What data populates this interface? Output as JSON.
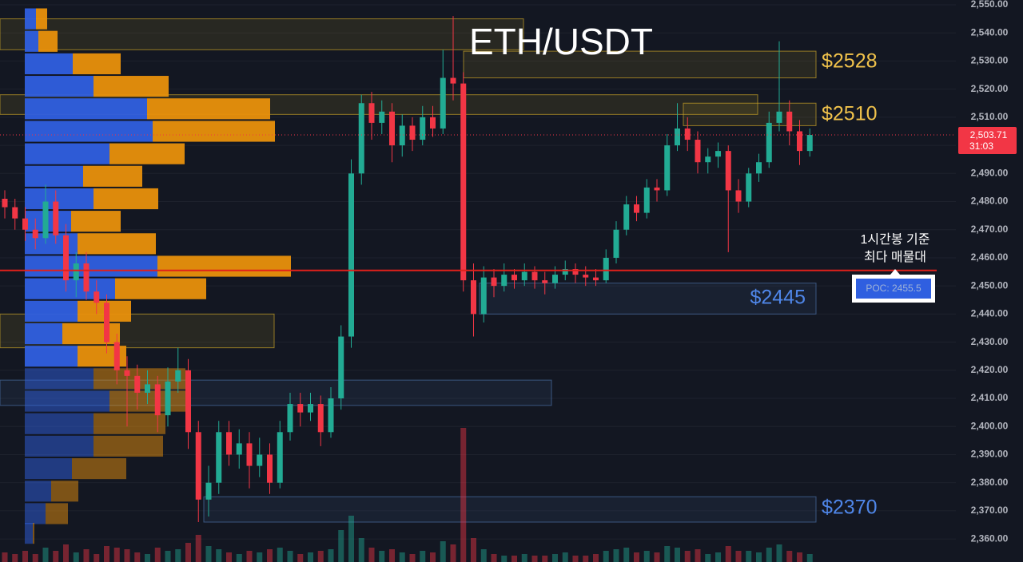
{
  "chart_data": {
    "type": "candlestick",
    "title": "ETH/USDT",
    "ylim": [
      2351.8,
      2551.7
    ],
    "yticks": [
      {
        "value": 2550,
        "label": "2,550.00"
      },
      {
        "value": 2540,
        "label": "2,540.00"
      },
      {
        "value": 2530,
        "label": "2,530.00"
      },
      {
        "value": 2520,
        "label": "2,520.00"
      },
      {
        "value": 2510,
        "label": "2,510.00"
      },
      {
        "value": 2500,
        "label": "2,500.00"
      },
      {
        "value": 2490,
        "label": "2,490.00"
      },
      {
        "value": 2480,
        "label": "2,480.00"
      },
      {
        "value": 2470,
        "label": "2,470.00"
      },
      {
        "value": 2460,
        "label": "2,460.00"
      },
      {
        "value": 2450,
        "label": "2,450.00"
      },
      {
        "value": 2440,
        "label": "2,440.00"
      },
      {
        "value": 2430,
        "label": "2,430.00"
      },
      {
        "value": 2420,
        "label": "2,420.00"
      },
      {
        "value": 2410,
        "label": "2,410.00"
      },
      {
        "value": 2400,
        "label": "2,400.00"
      },
      {
        "value": 2390,
        "label": "2,390.00"
      },
      {
        "value": 2380,
        "label": "2,380.00"
      },
      {
        "value": 2370,
        "label": "2,370.00"
      },
      {
        "value": 2360,
        "label": "2,360.00"
      }
    ],
    "grid": true,
    "up_color": "#22ab94",
    "down_color": "#f23645",
    "candles": [
      [
        2481,
        2484,
        2474,
        2478
      ],
      [
        2478,
        2481,
        2470,
        2474
      ],
      [
        2474,
        2478,
        2466,
        2470
      ],
      [
        2470,
        2474,
        2463,
        2467
      ],
      [
        2467,
        2486,
        2465,
        2480
      ],
      [
        2480,
        2484,
        2465,
        2468
      ],
      [
        2468,
        2472,
        2448,
        2452
      ],
      [
        2452,
        2462,
        2446,
        2458
      ],
      [
        2458,
        2462,
        2445,
        2448
      ],
      [
        2448,
        2452,
        2440,
        2444
      ],
      [
        2444,
        2447,
        2426,
        2430
      ],
      [
        2430,
        2433,
        2415,
        2420
      ],
      [
        2420,
        2425,
        2400,
        2418
      ],
      [
        2418,
        2422,
        2406,
        2412
      ],
      [
        2412,
        2420,
        2408,
        2415
      ],
      [
        2415,
        2418,
        2398,
        2404
      ],
      [
        2404,
        2421,
        2400,
        2416
      ],
      [
        2416,
        2428,
        2412,
        2420
      ],
      [
        2420,
        2424,
        2392,
        2398
      ],
      [
        2398,
        2402,
        2366,
        2374
      ],
      [
        2374,
        2386,
        2368,
        2380
      ],
      [
        2380,
        2402,
        2376,
        2398
      ],
      [
        2398,
        2402,
        2386,
        2390
      ],
      [
        2390,
        2399,
        2385,
        2394
      ],
      [
        2394,
        2398,
        2378,
        2386
      ],
      [
        2386,
        2396,
        2382,
        2390
      ],
      [
        2390,
        2394,
        2376,
        2380
      ],
      [
        2380,
        2402,
        2378,
        2398
      ],
      [
        2398,
        2412,
        2395,
        2408
      ],
      [
        2408,
        2412,
        2400,
        2405
      ],
      [
        2405,
        2412,
        2402,
        2408
      ],
      [
        2408,
        2411,
        2393,
        2398
      ],
      [
        2398,
        2414,
        2396,
        2410
      ],
      [
        2410,
        2436,
        2406,
        2432
      ],
      [
        2432,
        2495,
        2428,
        2490
      ],
      [
        2490,
        2518,
        2486,
        2515
      ],
      [
        2515,
        2519,
        2502,
        2508
      ],
      [
        2508,
        2516,
        2504,
        2512
      ],
      [
        2512,
        2515,
        2494,
        2500
      ],
      [
        2500,
        2511,
        2496,
        2507
      ],
      [
        2507,
        2510,
        2498,
        2502
      ],
      [
        2502,
        2514,
        2500,
        2510
      ],
      [
        2510,
        2514,
        2503,
        2506
      ],
      [
        2506,
        2534,
        2504,
        2524
      ],
      [
        2524,
        2546,
        2516,
        2522
      ],
      [
        2522,
        2526,
        2448,
        2452
      ],
      [
        2452,
        2458,
        2432,
        2440
      ],
      [
        2440,
        2457,
        2437,
        2453
      ],
      [
        2453,
        2456,
        2446,
        2450
      ],
      [
        2450,
        2458,
        2448,
        2454
      ],
      [
        2454,
        2456,
        2449,
        2452
      ],
      [
        2452,
        2458,
        2450,
        2455
      ],
      [
        2455,
        2457,
        2449,
        2452
      ],
      [
        2452,
        2455,
        2447,
        2451
      ],
      [
        2451,
        2457,
        2449,
        2454
      ],
      [
        2454,
        2459,
        2452,
        2456
      ],
      [
        2456,
        2458,
        2451,
        2454
      ],
      [
        2454,
        2457,
        2450,
        2453
      ],
      [
        2453,
        2456,
        2450,
        2452
      ],
      [
        2452,
        2463,
        2451,
        2460
      ],
      [
        2460,
        2473,
        2458,
        2470
      ],
      [
        2470,
        2482,
        2468,
        2479
      ],
      [
        2479,
        2482,
        2473,
        2476
      ],
      [
        2476,
        2488,
        2474,
        2485
      ],
      [
        2485,
        2488,
        2480,
        2484
      ],
      [
        2484,
        2504,
        2482,
        2500
      ],
      [
        2500,
        2515,
        2498,
        2506
      ],
      [
        2506,
        2510,
        2498,
        2502
      ],
      [
        2502,
        2505,
        2490,
        2494
      ],
      [
        2494,
        2499,
        2490,
        2496
      ],
      [
        2496,
        2501,
        2492,
        2498
      ],
      [
        2498,
        2500,
        2462,
        2484
      ],
      [
        2484,
        2488,
        2476,
        2480
      ],
      [
        2480,
        2492,
        2478,
        2490
      ],
      [
        2490,
        2497,
        2487,
        2494
      ],
      [
        2494,
        2512,
        2492,
        2508
      ],
      [
        2508,
        2537,
        2505,
        2512
      ],
      [
        2512,
        2516,
        2500,
        2505
      ],
      [
        2505,
        2509,
        2493,
        2498
      ],
      [
        2498,
        2506,
        2496,
        2503.71
      ]
    ],
    "volume": [
      12,
      10,
      14,
      10,
      18,
      14,
      22,
      12,
      16,
      10,
      20,
      18,
      16,
      12,
      10,
      18,
      14,
      16,
      24,
      34,
      20,
      16,
      12,
      10,
      14,
      12,
      16,
      18,
      14,
      10,
      12,
      14,
      16,
      40,
      58,
      30,
      18,
      14,
      16,
      12,
      10,
      14,
      12,
      26,
      22,
      168,
      30,
      16,
      10,
      8,
      8,
      10,
      8,
      8,
      10,
      12,
      8,
      8,
      10,
      14,
      16,
      18,
      12,
      14,
      12,
      20,
      18,
      14,
      16,
      10,
      12,
      20,
      14,
      14,
      12,
      18,
      22,
      14,
      12,
      10
    ],
    "profile": {
      "prices": [
        2545,
        2537,
        2529,
        2521,
        2513,
        2505,
        2497,
        2489,
        2481,
        2473,
        2465,
        2457,
        2449,
        2441,
        2433,
        2425,
        2417,
        2409,
        2401,
        2393,
        2385,
        2377,
        2369,
        2362
      ],
      "buy": [
        14,
        17,
        60,
        86,
        153,
        160,
        106,
        73,
        86,
        58,
        66,
        166,
        113,
        66,
        47,
        66,
        86,
        106,
        86,
        86,
        59,
        33,
        26,
        10
      ],
      "sell": [
        14,
        24,
        60,
        94,
        154,
        153,
        94,
        74,
        81,
        62,
        98,
        167,
        114,
        67,
        72,
        61,
        115,
        98,
        90,
        87,
        68,
        34,
        28,
        2
      ],
      "buy_color": "#2f5fe0",
      "sell_color": "#e8900c"
    },
    "zones": [
      {
        "low": 2534,
        "high": 2545,
        "color": "#c9a227"
      },
      {
        "low": 2524,
        "high": 2533.5,
        "color": "#c9a227"
      },
      {
        "low": 2511,
        "high": 2518,
        "color": "#c9a227"
      },
      {
        "low": 2507,
        "high": 2515,
        "color": "#c9a227"
      },
      {
        "low": 2440,
        "high": 2451,
        "color": "#4a6fa5"
      },
      {
        "low": 2428,
        "high": 2440,
        "color": "#c9a227"
      },
      {
        "low": 2407.5,
        "high": 2416.5,
        "color": "#4a6fa5"
      },
      {
        "low": 2366,
        "high": 2375,
        "color": "#4a6fa5"
      }
    ],
    "annotations": [
      {
        "text": "$2528",
        "color": "#f0c24b"
      },
      {
        "text": "$2510",
        "color": "#f0c24b"
      },
      {
        "text": "$2445",
        "color": "#4f86e8"
      },
      {
        "text": "$2370",
        "color": "#4f86e8"
      }
    ],
    "poc_line": 2455.5,
    "poc_label": "POC: 2455.5",
    "note_lines": [
      "1시간봉 기준",
      "최다 매물대"
    ],
    "last_price": {
      "value": 2503.71,
      "label": "2,503.71"
    },
    "countdown": "31:03"
  }
}
